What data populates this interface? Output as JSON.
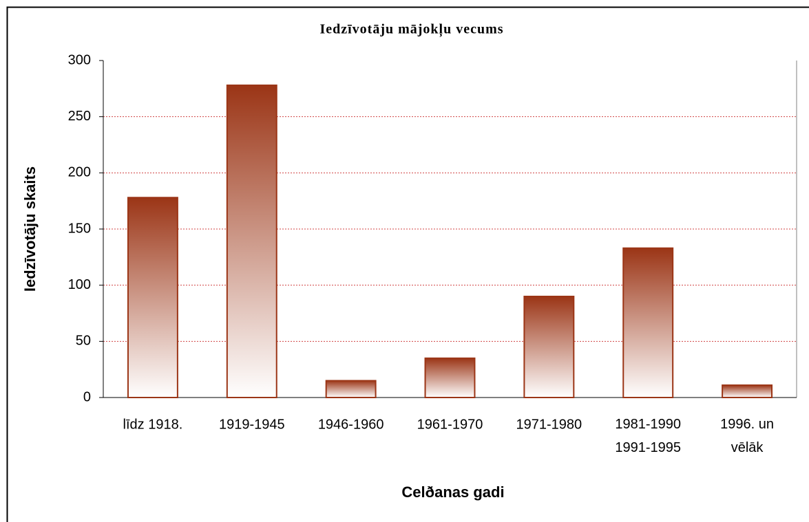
{
  "chart_data": {
    "type": "bar",
    "title": "Iedzīvotāju mājokļu vecums",
    "x_label": "Celðanas gadi",
    "y_label": "Iedzīvotāju skaits",
    "categories": [
      "līdz 1918.",
      "1919-1945",
      "1946-1960",
      "1961-1970",
      "1971-1980",
      "1981-1990\n1991-1995",
      "1996. un\nvēlāk"
    ],
    "values": [
      178,
      278,
      15,
      35,
      90,
      133,
      11
    ],
    "color": "#9b3516",
    "ylim": [
      0,
      300
    ],
    "yticks": [
      0,
      50,
      100,
      150,
      200,
      250,
      300
    ],
    "grid": true
  }
}
